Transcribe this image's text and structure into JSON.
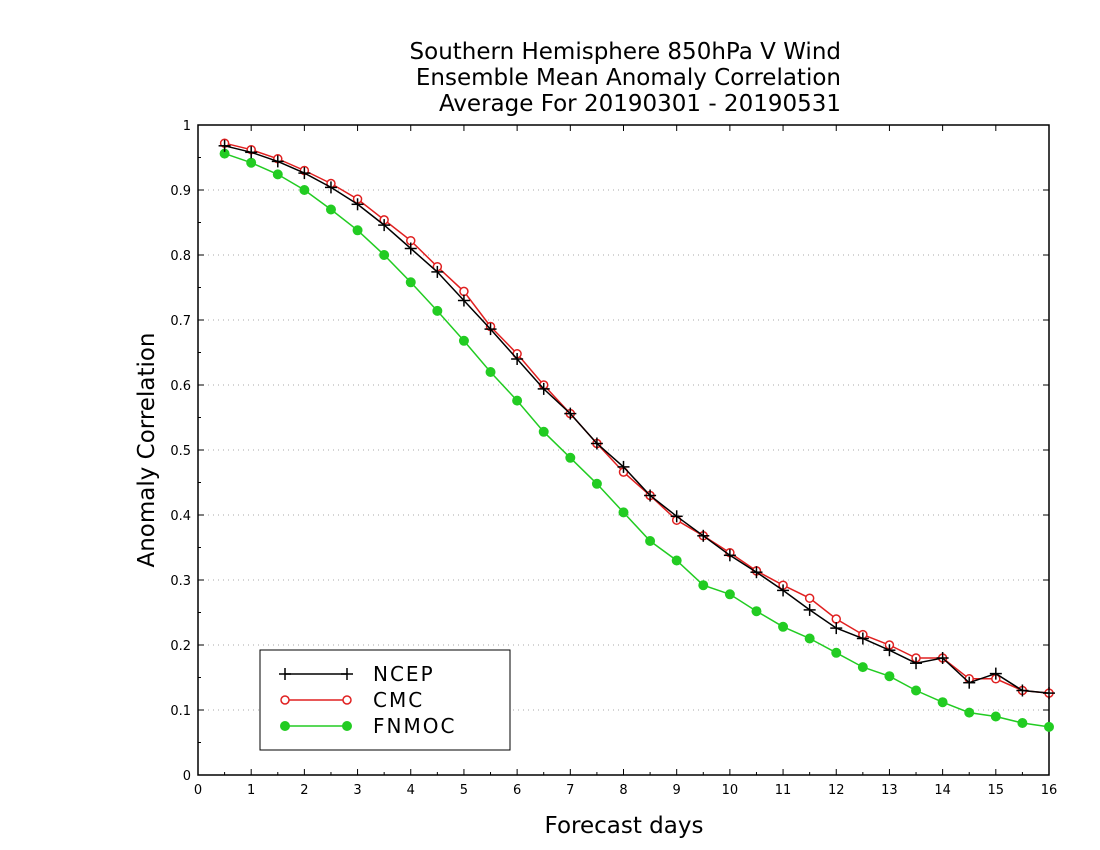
{
  "chart_data": {
    "type": "line",
    "title_lines": [
      "Southern Hemisphere 850hPa V Wind",
      "Ensemble Mean Anomaly Correlation",
      "Average For 20190301 - 20190531"
    ],
    "xlabel": "Forecast days",
    "ylabel": "Anomaly Correlation",
    "xlim": [
      0,
      16
    ],
    "ylim": [
      0,
      1
    ],
    "xticks": [
      0,
      1,
      2,
      3,
      4,
      5,
      6,
      7,
      8,
      9,
      10,
      11,
      12,
      13,
      14,
      15,
      16
    ],
    "yticks": [
      0,
      0.1,
      0.2,
      0.3,
      0.4,
      0.5,
      0.6,
      0.7,
      0.8,
      0.9,
      1
    ],
    "ytick_labels": [
      "0",
      "0.1",
      "0.2",
      "0.3",
      "0.4",
      "0.5",
      "0.6",
      "0.7",
      "0.8",
      "0.9",
      "1"
    ],
    "grid": "horizontal-dotted",
    "legend_position": "bottom-left",
    "x": [
      0.5,
      1,
      1.5,
      2,
      2.5,
      3,
      3.5,
      4,
      4.5,
      5,
      5.5,
      6,
      6.5,
      7,
      7.5,
      8,
      8.5,
      9,
      9.5,
      10,
      10.5,
      11,
      11.5,
      12,
      12.5,
      13,
      13.5,
      14,
      14.5,
      15,
      15.5,
      16
    ],
    "series": [
      {
        "name": "NCEP",
        "color": "#000000",
        "marker": "plus",
        "values": [
          0.968,
          0.958,
          0.944,
          0.926,
          0.904,
          0.878,
          0.846,
          0.81,
          0.774,
          0.73,
          0.686,
          0.64,
          0.594,
          0.556,
          0.51,
          0.474,
          0.43,
          0.398,
          0.368,
          0.338,
          0.312,
          0.284,
          0.254,
          0.226,
          0.21,
          0.192,
          0.172,
          0.18,
          0.142,
          0.156,
          0.13,
          0.126
        ]
      },
      {
        "name": "CMC",
        "color": "#e02020",
        "marker": "open-circle",
        "values": [
          0.972,
          0.962,
          0.948,
          0.93,
          0.91,
          0.886,
          0.854,
          0.822,
          0.782,
          0.744,
          0.69,
          0.648,
          0.6,
          0.556,
          0.51,
          0.466,
          0.43,
          0.392,
          0.368,
          0.342,
          0.314,
          0.292,
          0.272,
          0.24,
          0.216,
          0.2,
          0.18,
          0.18,
          0.148,
          0.148,
          0.13,
          0.126
        ]
      },
      {
        "name": "FNMOC",
        "color": "#22cc22",
        "marker": "filled-circle",
        "values": [
          0.956,
          0.942,
          0.924,
          0.9,
          0.87,
          0.838,
          0.8,
          0.758,
          0.714,
          0.668,
          0.62,
          0.576,
          0.528,
          0.488,
          0.448,
          0.404,
          0.36,
          0.33,
          0.292,
          0.278,
          0.252,
          0.228,
          0.21,
          0.188,
          0.166,
          0.152,
          0.13,
          0.112,
          0.096,
          0.09,
          0.08,
          0.074
        ]
      }
    ]
  }
}
